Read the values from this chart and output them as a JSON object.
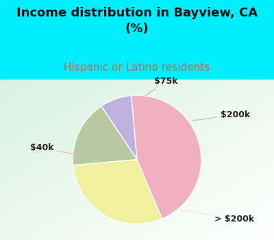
{
  "title": "Income distribution in Bayview, CA\n(%)",
  "subtitle": "Hispanic or Latino residents",
  "slices": [
    {
      "label": "$75k",
      "value": 8,
      "color": "#c0b0e0"
    },
    {
      "label": "$200k",
      "value": 17,
      "color": "#b8c8a0"
    },
    {
      "label": "> $200k",
      "value": 30,
      "color": "#f0f0a0"
    },
    {
      "label": "$40k",
      "value": 45,
      "color": "#f0b0c0"
    }
  ],
  "title_fontsize": 13,
  "subtitle_fontsize": 11,
  "subtitle_color": "#cc6644",
  "title_color": "#111111",
  "bg_top_color": "#00eeff",
  "label_fontsize": 9,
  "startangle": 95
}
